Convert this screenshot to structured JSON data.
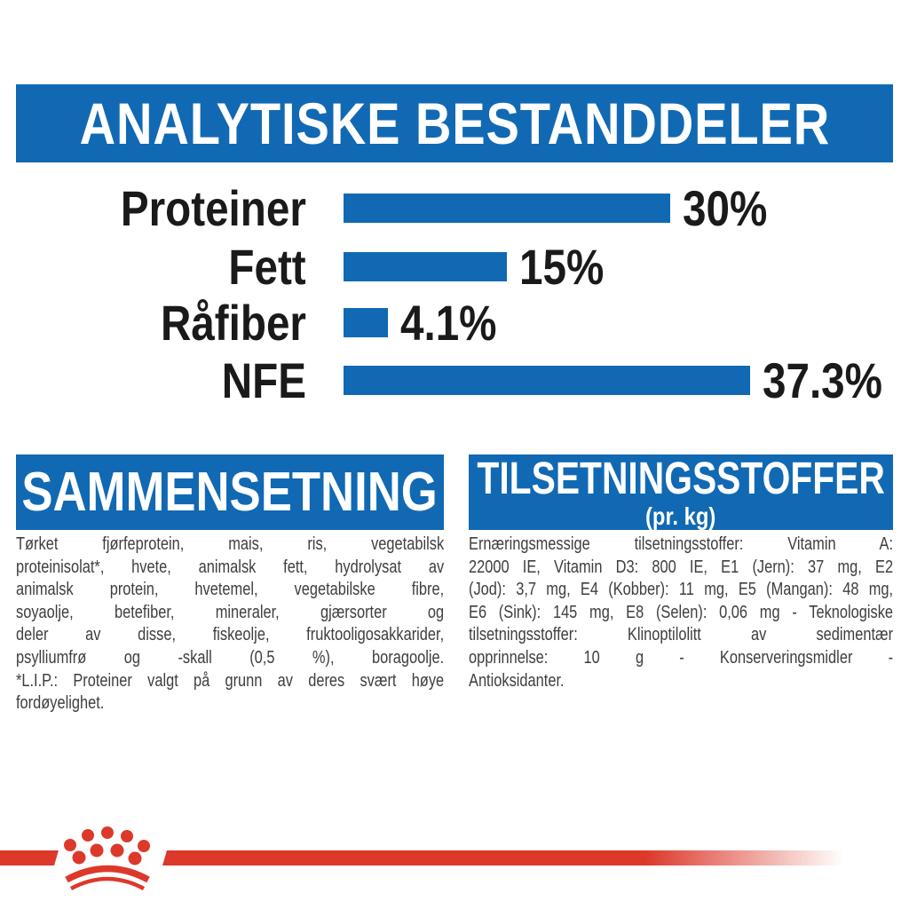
{
  "header": {
    "title": "ANALYTISKE BESTANDDELER"
  },
  "chart_data": {
    "type": "bar",
    "orientation": "horizontal",
    "title": "ANALYTISKE BESTANDDELER",
    "categories": [
      "Proteiner",
      "Fett",
      "Råfiber",
      "NFE"
    ],
    "values": [
      30,
      15,
      4.1,
      37.3
    ],
    "value_labels": [
      "30%",
      "15%",
      "4.1%",
      "37.3%"
    ],
    "bar_color": "#1169B3",
    "xlim": [
      0,
      40
    ],
    "grid": false,
    "legend": false
  },
  "sections": {
    "composition": {
      "title": "SAMMENSETNING",
      "lines": [
        "Tørket fjørfeprotein, mais, ris, vegetabilsk",
        "proteinisolat*, hvete, animalsk fett, hydrolysat av",
        "animalsk protein, hvetemel, vegetabilske fibre,",
        "soyaolje, betefiber, mineraler, gjærsorter og",
        "deler av disse, fiskeolje, fruktooligosakkarider,",
        "psylliumfrø og -skall (0,5 %), boragoolje.",
        "*L.I.P.: Proteiner valgt på grunn av deres svært høye",
        "fordøyelighet."
      ]
    },
    "additives": {
      "title": "TILSETNINGSSTOFFER",
      "subtitle": "(pr. kg)",
      "lines": [
        "Ernæringsmessige tilsetningsstoffer: Vitamin A:",
        "22000 IE, Vitamin D3: 800 IE, E1 (Jern): 37 mg, E2",
        "(Jod): 3,7 mg, E4 (Kobber): 11 mg, E5 (Mangan): 48 mg,",
        "E6 (Sink): 145 mg, E8 (Selen): 0,06 mg - Teknologiske",
        "tilsetningsstoffer: Klinoptilolitt av sedimentær",
        "opprinnelse: 10 g - Konserveringsmidler -",
        "Antioksidanter."
      ]
    }
  },
  "brand": {
    "logo_icon": "royal-canin-crown-icon",
    "red": "#DC392B"
  },
  "colors": {
    "blue": "#1169B3",
    "chart_text": "#1a1a1a",
    "body_text": "#3e3e3e"
  }
}
